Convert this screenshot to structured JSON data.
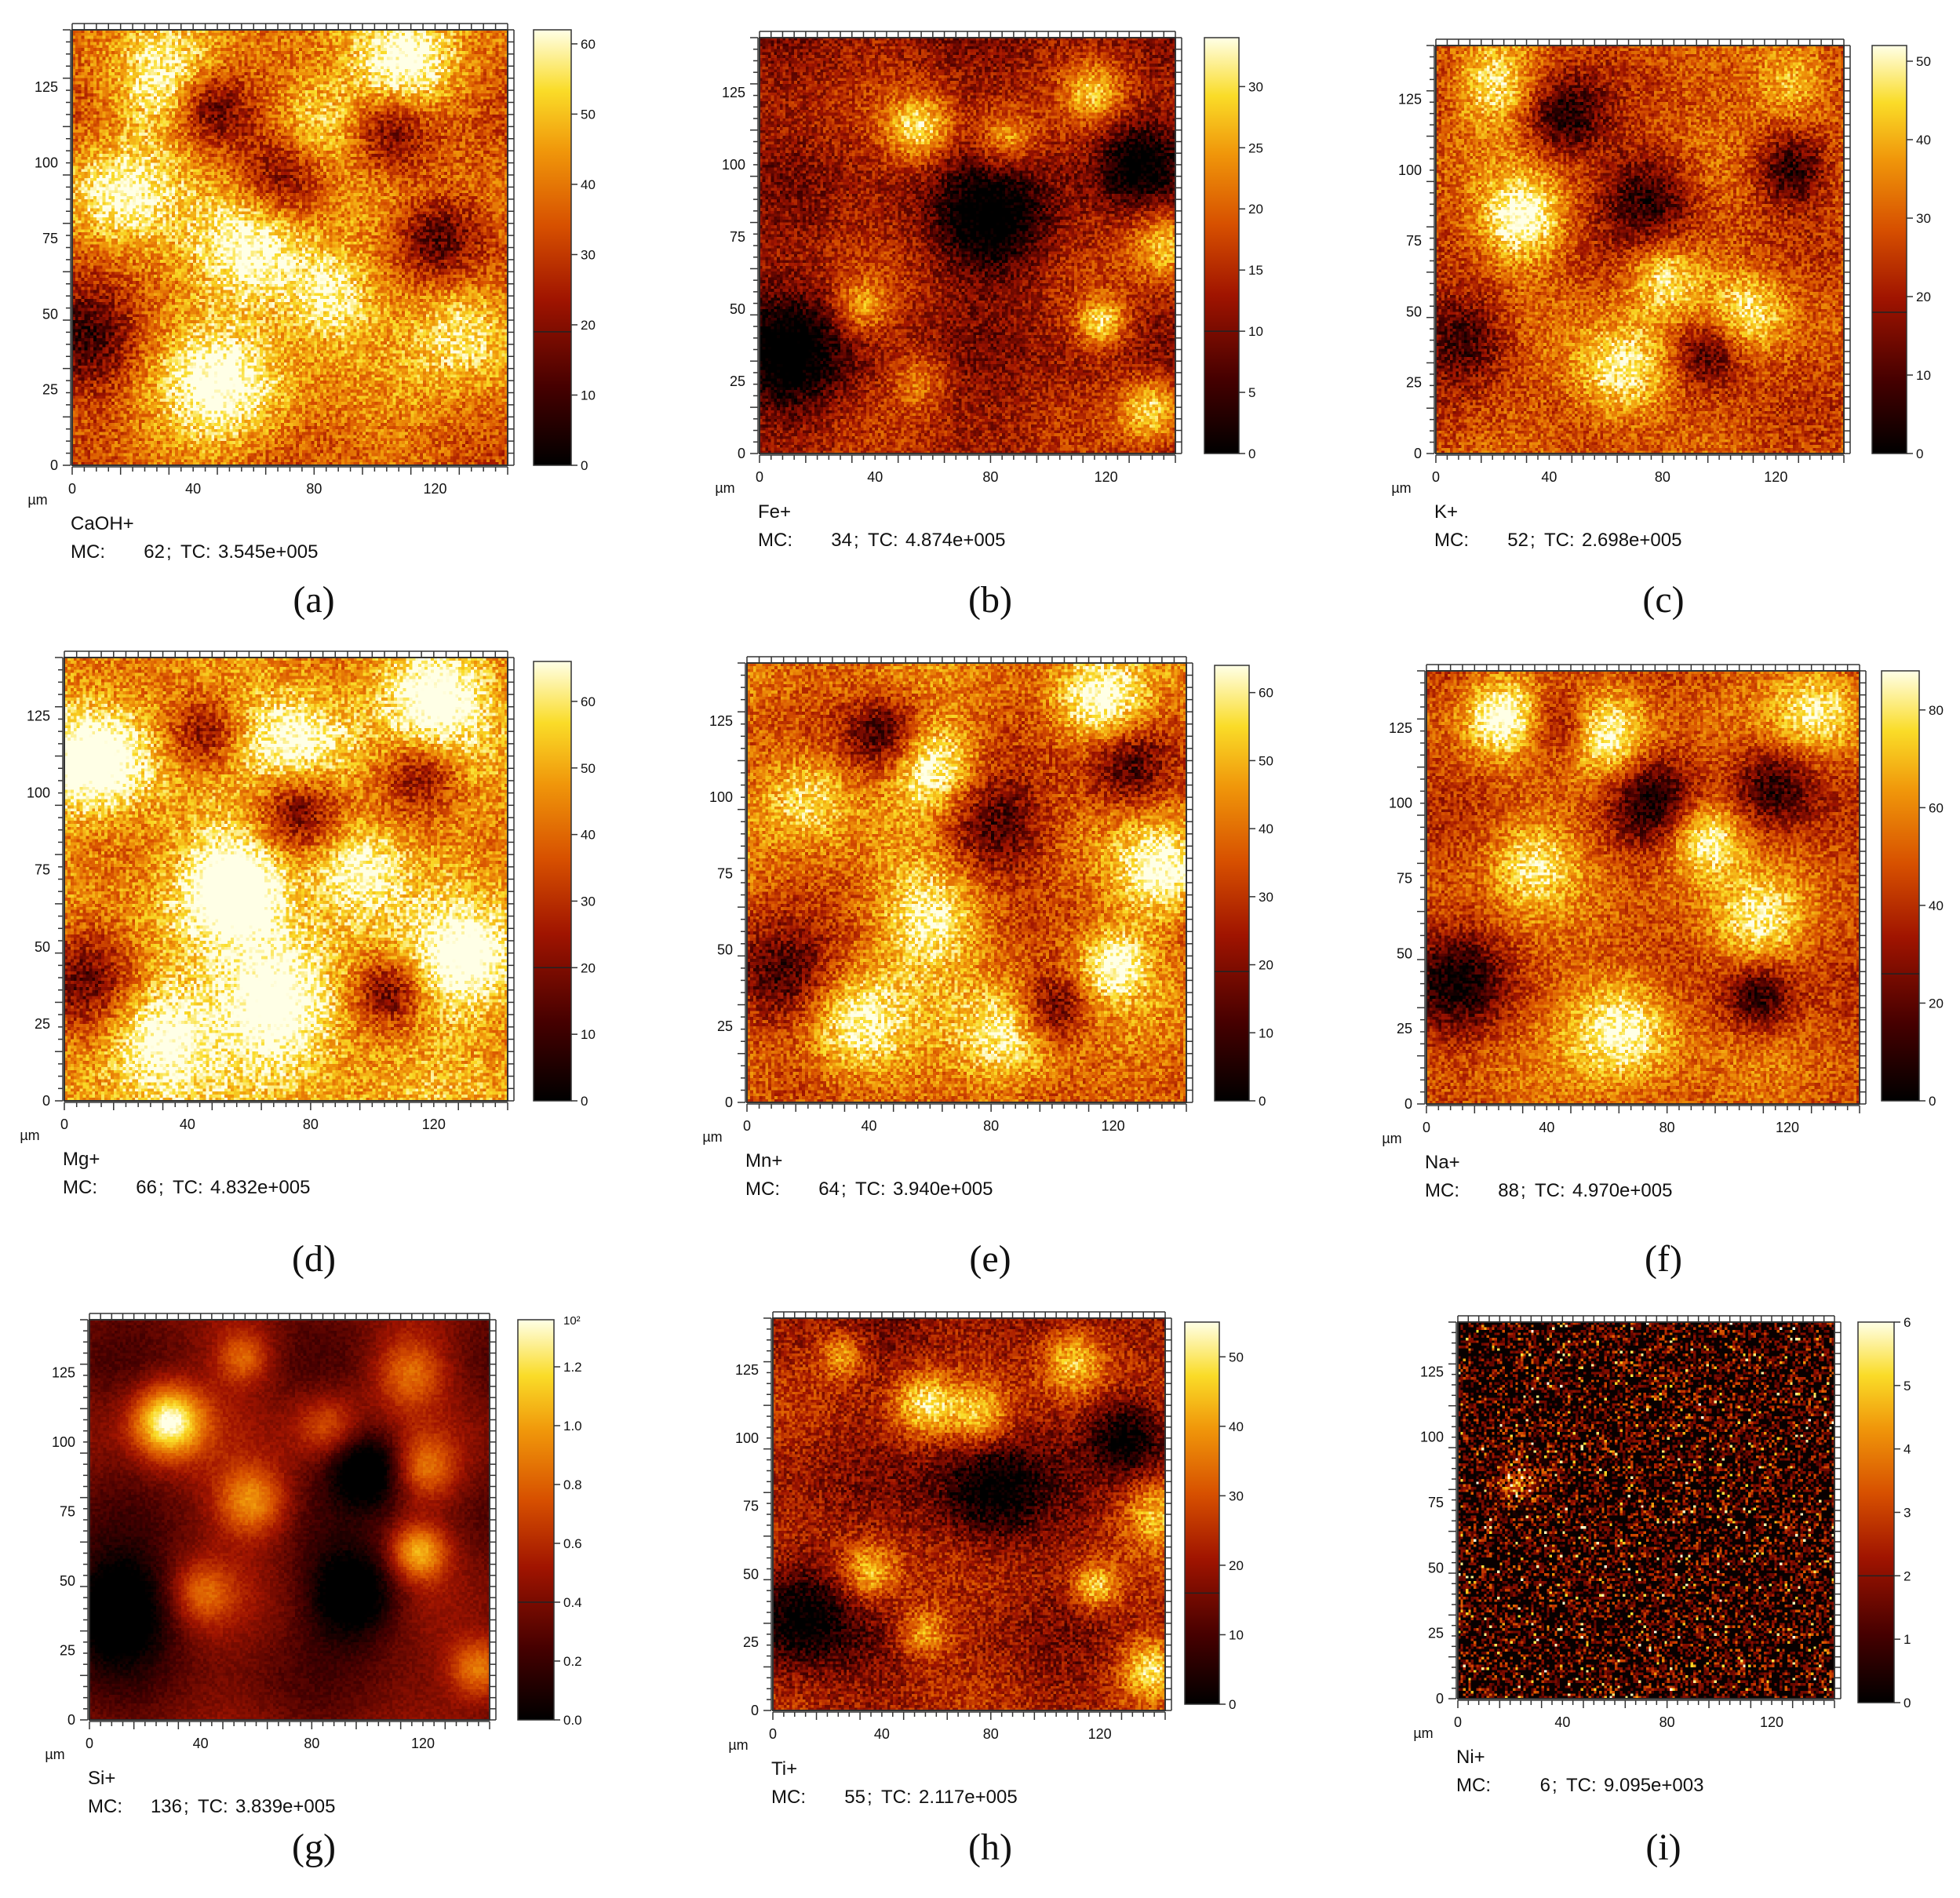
{
  "figure": {
    "unit_label": "µm",
    "mc_label": "MC:",
    "tc_label": "TC:"
  },
  "chart_data": [
    {
      "type": "heatmap",
      "panel": "(a)",
      "ion": "CaOH+",
      "mc": "62",
      "tc": "3.545e+005",
      "x_ticks": [
        "0",
        "40",
        "80",
        "120"
      ],
      "y_ticks": [
        "0",
        "25",
        "50",
        "75",
        "100",
        "125"
      ],
      "xlim": [
        0,
        144
      ],
      "ylim": [
        0,
        144
      ],
      "colorbar_ticks": [
        "0",
        "10",
        "20",
        "30",
        "40",
        "50",
        "60"
      ],
      "colorbar_range": [
        0,
        62
      ],
      "colorbar_threshold": 19,
      "intensity": 0.62,
      "noise": 0.32,
      "seed": 11,
      "blobs": [
        [
          60,
          70,
          14,
          0.9
        ],
        [
          110,
          130,
          12,
          0.8
        ],
        [
          30,
          125,
          12,
          0.7
        ],
        [
          15,
          90,
          12,
          0.7
        ],
        [
          50,
          25,
          14,
          0.8
        ],
        [
          85,
          55,
          10,
          0.7
        ],
        [
          130,
          45,
          12,
          0.6
        ],
        [
          80,
          110,
          12,
          0.7
        ]
      ],
      "darks": [
        [
          45,
          118,
          9
        ],
        [
          5,
          40,
          12
        ],
        [
          70,
          95,
          11
        ],
        [
          105,
          110,
          10
        ],
        [
          120,
          75,
          10
        ]
      ]
    },
    {
      "type": "heatmap",
      "panel": "(b)",
      "ion": "Fe+",
      "mc": "34",
      "tc": "4.874e+005",
      "x_ticks": [
        "0",
        "40",
        "80",
        "120"
      ],
      "y_ticks": [
        "0",
        "25",
        "50",
        "75",
        "100",
        "125"
      ],
      "xlim": [
        0,
        144
      ],
      "ylim": [
        0,
        144
      ],
      "colorbar_ticks": [
        "0",
        "5",
        "10",
        "15",
        "20",
        "25",
        "30"
      ],
      "colorbar_range": [
        0,
        34
      ],
      "colorbar_threshold": 10,
      "intensity": 0.38,
      "noise": 0.3,
      "seed": 23,
      "blobs": [
        [
          55,
          112,
          8,
          0.9
        ],
        [
          85,
          108,
          7,
          0.7
        ],
        [
          115,
          125,
          7,
          0.7
        ],
        [
          118,
          45,
          6,
          0.9
        ],
        [
          135,
          15,
          8,
          0.9
        ],
        [
          140,
          72,
          9,
          0.8
        ],
        [
          35,
          50,
          7,
          0.6
        ],
        [
          55,
          25,
          7,
          0.5
        ]
      ],
      "darks": [
        [
          10,
          35,
          14
        ],
        [
          80,
          80,
          14
        ],
        [
          130,
          100,
          10
        ]
      ]
    },
    {
      "type": "heatmap",
      "panel": "(c)",
      "ion": "K+",
      "mc": "52",
      "tc": "2.698e+005",
      "x_ticks": [
        "0",
        "40",
        "80",
        "120"
      ],
      "y_ticks": [
        "0",
        "25",
        "50",
        "75",
        "100",
        "125"
      ],
      "xlim": [
        0,
        144
      ],
      "ylim": [
        0,
        144
      ],
      "colorbar_ticks": [
        "0",
        "10",
        "20",
        "30",
        "40",
        "50"
      ],
      "colorbar_range": [
        0,
        52
      ],
      "colorbar_threshold": 18,
      "intensity": 0.55,
      "noise": 0.32,
      "seed": 37,
      "blobs": [
        [
          30,
          82,
          10,
          0.95
        ],
        [
          65,
          28,
          12,
          0.85
        ],
        [
          80,
          62,
          9,
          0.7
        ],
        [
          20,
          130,
          10,
          0.7
        ],
        [
          110,
          50,
          10,
          0.6
        ],
        [
          125,
          130,
          10,
          0.6
        ]
      ],
      "darks": [
        [
          10,
          40,
          12
        ],
        [
          45,
          118,
          10
        ],
        [
          75,
          90,
          12
        ],
        [
          125,
          100,
          9
        ],
        [
          95,
          35,
          9
        ]
      ]
    },
    {
      "type": "heatmap",
      "panel": "(d)",
      "ion": "Mg+",
      "mc": "66",
      "tc": "4.832e+005",
      "x_ticks": [
        "0",
        "40",
        "80",
        "120"
      ],
      "y_ticks": [
        "0",
        "25",
        "50",
        "75",
        "100",
        "125"
      ],
      "xlim": [
        0,
        144
      ],
      "ylim": [
        0,
        144
      ],
      "colorbar_ticks": [
        "0",
        "10",
        "20",
        "30",
        "40",
        "50",
        "60"
      ],
      "colorbar_range": [
        0,
        66
      ],
      "colorbar_threshold": 20,
      "intensity": 0.72,
      "noise": 0.32,
      "seed": 41,
      "blobs": [
        [
          55,
          70,
          12,
          0.95
        ],
        [
          70,
          30,
          14,
          0.9
        ],
        [
          10,
          110,
          12,
          0.9
        ],
        [
          120,
          130,
          12,
          0.8
        ],
        [
          30,
          20,
          12,
          0.8
        ],
        [
          95,
          75,
          10,
          0.7
        ],
        [
          130,
          45,
          12,
          0.7
        ],
        [
          75,
          115,
          12,
          0.7
        ]
      ],
      "darks": [
        [
          5,
          40,
          12
        ],
        [
          45,
          118,
          9
        ],
        [
          75,
          95,
          10
        ],
        [
          115,
          105,
          10
        ],
        [
          105,
          35,
          8
        ]
      ]
    },
    {
      "type": "heatmap",
      "panel": "(e)",
      "ion": "Mn+",
      "mc": "64",
      "tc": "3.940e+005",
      "x_ticks": [
        "0",
        "40",
        "80",
        "120"
      ],
      "y_ticks": [
        "0",
        "25",
        "50",
        "75",
        "100",
        "125"
      ],
      "xlim": [
        0,
        144
      ],
      "ylim": [
        0,
        144
      ],
      "colorbar_ticks": [
        "0",
        "10",
        "20",
        "30",
        "40",
        "50",
        "60"
      ],
      "colorbar_range": [
        0,
        64
      ],
      "colorbar_threshold": 19,
      "intensity": 0.6,
      "noise": 0.32,
      "seed": 53,
      "blobs": [
        [
          60,
          110,
          10,
          0.85
        ],
        [
          115,
          130,
          10,
          0.85
        ],
        [
          135,
          75,
          10,
          0.8
        ],
        [
          120,
          45,
          8,
          0.8
        ],
        [
          60,
          60,
          12,
          0.7
        ],
        [
          85,
          20,
          12,
          0.7
        ],
        [
          20,
          100,
          10,
          0.6
        ],
        [
          35,
          25,
          12,
          0.7
        ]
      ],
      "darks": [
        [
          10,
          40,
          12
        ],
        [
          45,
          120,
          9
        ],
        [
          80,
          90,
          12
        ],
        [
          125,
          110,
          10
        ],
        [
          100,
          30,
          8
        ]
      ]
    },
    {
      "type": "heatmap",
      "panel": "(f)",
      "ion": "Na+",
      "mc": "88",
      "tc": "4.970e+005",
      "x_ticks": [
        "0",
        "40",
        "80",
        "120"
      ],
      "y_ticks": [
        "0",
        "25",
        "50",
        "75",
        "100",
        "125"
      ],
      "xlim": [
        0,
        144
      ],
      "ylim": [
        0,
        144
      ],
      "colorbar_ticks": [
        "0",
        "20",
        "40",
        "60",
        "80"
      ],
      "colorbar_range": [
        0,
        88
      ],
      "colorbar_threshold": 26,
      "intensity": 0.55,
      "noise": 0.3,
      "seed": 67,
      "blobs": [
        [
          25,
          128,
          9,
          0.95
        ],
        [
          58,
          122,
          10,
          0.95
        ],
        [
          92,
          88,
          9,
          0.9
        ],
        [
          65,
          25,
          12,
          0.9
        ],
        [
          130,
          130,
          10,
          0.7
        ],
        [
          35,
          80,
          10,
          0.6
        ],
        [
          110,
          60,
          10,
          0.6
        ]
      ],
      "darks": [
        [
          10,
          40,
          12
        ],
        [
          45,
          125,
          9
        ],
        [
          75,
          100,
          10
        ],
        [
          115,
          105,
          10
        ],
        [
          110,
          35,
          8
        ]
      ]
    },
    {
      "type": "heatmap",
      "panel": "(g)",
      "ion": "Si+",
      "mc": "136",
      "tc": "3.839e+005",
      "x_ticks": [
        "0",
        "40",
        "80",
        "120"
      ],
      "y_ticks": [
        "0",
        "25",
        "50",
        "75",
        "100",
        "125"
      ],
      "xlim": [
        0,
        144
      ],
      "ylim": [
        0,
        144
      ],
      "colorbar_ticks": [
        "0.0",
        "0.2",
        "0.4",
        "0.6",
        "0.8",
        "1.0",
        "1.2"
      ],
      "colorbar_exponent": "10²",
      "colorbar_range": [
        0,
        136
      ],
      "colorbar_threshold": 40,
      "intensity": 0.28,
      "noise": 0.08,
      "seed": 79,
      "blobs": [
        [
          28,
          107,
          9,
          1.3
        ],
        [
          58,
          78,
          9,
          0.8
        ],
        [
          118,
          60,
          7,
          0.9
        ],
        [
          140,
          18,
          8,
          0.8
        ],
        [
          55,
          130,
          7,
          0.6
        ],
        [
          115,
          125,
          9,
          0.6
        ],
        [
          120,
          90,
          8,
          0.6
        ],
        [
          85,
          105,
          8,
          0.5
        ],
        [
          40,
          45,
          8,
          0.5
        ]
      ],
      "darks": [
        [
          10,
          40,
          14
        ],
        [
          95,
          45,
          12
        ],
        [
          100,
          90,
          10
        ]
      ]
    },
    {
      "type": "heatmap",
      "panel": "(h)",
      "ion": "Ti+",
      "mc": "55",
      "tc": "2.117e+005",
      "x_ticks": [
        "0",
        "40",
        "80",
        "120"
      ],
      "y_ticks": [
        "0",
        "25",
        "50",
        "75",
        "100",
        "125"
      ],
      "xlim": [
        0,
        144
      ],
      "ylim": [
        0,
        144
      ],
      "colorbar_ticks": [
        "0",
        "10",
        "20",
        "30",
        "40",
        "50"
      ],
      "colorbar_range": [
        0,
        55
      ],
      "colorbar_threshold": 16,
      "intensity": 0.38,
      "noise": 0.3,
      "seed": 83,
      "blobs": [
        [
          55,
          112,
          8,
          0.9
        ],
        [
          75,
          108,
          8,
          0.7
        ],
        [
          110,
          128,
          9,
          0.9
        ],
        [
          35,
          50,
          8,
          0.8
        ],
        [
          55,
          28,
          7,
          0.7
        ],
        [
          118,
          45,
          6,
          0.85
        ],
        [
          138,
          15,
          8,
          0.9
        ],
        [
          140,
          72,
          9,
          0.7
        ],
        [
          25,
          130,
          6,
          0.7
        ]
      ],
      "darks": [
        [
          10,
          35,
          14
        ],
        [
          80,
          80,
          14
        ],
        [
          130,
          100,
          10
        ]
      ]
    },
    {
      "type": "heatmap",
      "panel": "(i)",
      "ion": "Ni+",
      "mc": "6",
      "tc": "9.095e+003",
      "x_ticks": [
        "0",
        "40",
        "80",
        "120"
      ],
      "y_ticks": [
        "0",
        "25",
        "50",
        "75",
        "100",
        "125"
      ],
      "xlim": [
        0,
        144
      ],
      "ylim": [
        0,
        144
      ],
      "colorbar_ticks": [
        "0",
        "1",
        "2",
        "3",
        "4",
        "5",
        "6"
      ],
      "colorbar_range": [
        0,
        6
      ],
      "colorbar_threshold": 2,
      "intensity": 0.08,
      "noise": 0.0,
      "seed": 97,
      "sparse": true,
      "blobs": [
        [
          22,
          83,
          6,
          0.5
        ]
      ],
      "darks": []
    }
  ]
}
